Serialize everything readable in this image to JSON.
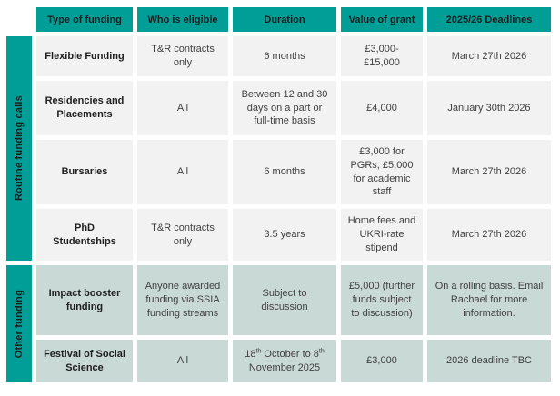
{
  "theme": {
    "teal": "#009e97",
    "row_gray": "#f2f2f2",
    "row_teal": "#c9d9d6",
    "header_text": "#16211f"
  },
  "header": {
    "columns": [
      "Type of funding",
      "Who is eligible",
      "Duration",
      "Value of grant",
      "2025/26 Deadlines"
    ]
  },
  "groups": [
    {
      "label": "Routine funding calls"
    },
    {
      "label": "Other funding"
    }
  ],
  "rows": [
    {
      "type": "Flexible Funding",
      "eligible": "T&R contracts only",
      "duration": "6 months",
      "value": "£3,000-£15,000",
      "deadline": "March 27th 2026",
      "group": "Routine funding calls"
    },
    {
      "type": "Residencies and Placements",
      "eligible": "All",
      "duration": "Between 12 and 30 days on a part or full-time basis",
      "value": "£4,000",
      "deadline": "January 30th 2026",
      "group": "Routine funding calls"
    },
    {
      "type": "Bursaries",
      "eligible": "All",
      "duration": "6 months",
      "value": "£3,000 for PGRs, £5,000 for academic staff",
      "deadline": "March 27th 2026",
      "group": "Routine funding calls"
    },
    {
      "type": "PhD Studentships",
      "eligible": "T&R contracts only",
      "duration": "3.5 years",
      "value": "Home fees and UKRI-rate stipend",
      "deadline": "March 27th 2026",
      "group": "Routine funding calls"
    },
    {
      "type": "Impact booster funding",
      "eligible": "Anyone awarded funding via SSIA funding streams",
      "duration": "Subject to discussion",
      "value": "£5,000 (further funds subject to discussion)",
      "deadline": "On a rolling basis. Email Rachael for more information.",
      "group": "Other funding"
    },
    {
      "type": "Festival of Social Science",
      "eligible": "All",
      "duration": "18th October to 8th November 2025",
      "duration_parts": [
        "18",
        "th",
        " October to 8",
        "th",
        " November 2025"
      ],
      "value": "£3,000",
      "deadline": "2026 deadline TBC",
      "group": "Other funding"
    }
  ]
}
